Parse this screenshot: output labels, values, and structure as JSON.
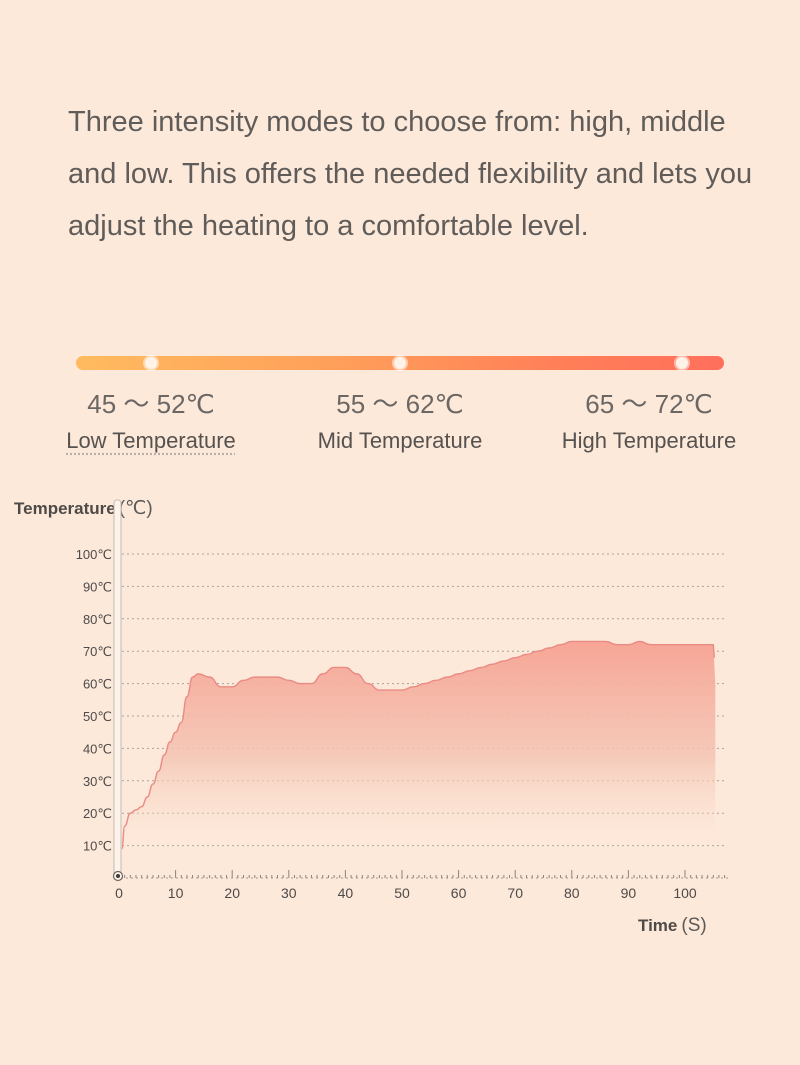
{
  "intro": "Three intensity modes to choose from: high, middle and low. This offers the needed flexibility and lets you adjust the heating to a comfortable level.",
  "modes": [
    {
      "range": "45 ～ 52℃",
      "name": "Low Temperature"
    },
    {
      "range": "55 ～ 62℃",
      "name": "Mid Temperature"
    },
    {
      "range": "65 ～ 72℃",
      "name": "High Temperature"
    }
  ],
  "colors": {
    "background": "#fde9da",
    "bar_start": "#ffbb5f",
    "bar_end": "#ff6f5c",
    "curve_line": "#e98b84",
    "area_top": "#f7a89a"
  },
  "chart_data": {
    "type": "area",
    "ylabel": "Temperature",
    "ylabel_unit": "(℃)",
    "xlabel": "Time",
    "xlabel_unit": "(S)",
    "x_ticks": [
      0,
      10,
      20,
      30,
      40,
      50,
      60,
      70,
      80,
      90,
      100
    ],
    "x_tick_labels": [
      "0",
      "10",
      "20",
      "30",
      "40",
      "50",
      "60",
      "70",
      "80",
      "90",
      "100"
    ],
    "y_ticks": [
      10,
      20,
      30,
      40,
      50,
      60,
      70,
      80,
      90,
      100
    ],
    "y_tick_labels": [
      "10℃",
      "20℃",
      "30℃",
      "40℃",
      "50℃",
      "60℃",
      "70℃",
      "80℃",
      "90℃",
      "100℃"
    ],
    "xlim": [
      0,
      107
    ],
    "ylim": [
      0,
      100
    ],
    "grid": "horizontal-dotted",
    "series": [
      {
        "x": [
          0.5,
          1,
          2,
          3,
          4,
          5,
          6,
          7,
          8,
          9,
          10,
          11,
          12,
          13,
          14,
          16,
          18,
          20,
          22,
          24,
          26,
          28,
          30,
          32,
          34,
          36,
          38,
          40,
          42,
          44,
          46,
          48,
          50,
          52,
          54,
          56,
          58,
          60,
          62,
          64,
          66,
          68,
          70,
          72,
          74,
          76,
          78,
          80,
          82,
          84,
          86,
          88,
          90,
          92,
          94,
          96,
          98,
          100,
          102,
          104,
          105
        ],
        "y": [
          9,
          16,
          20,
          21,
          22,
          25,
          29,
          33,
          38,
          42,
          45,
          48,
          56,
          62,
          63,
          62,
          59,
          59,
          61,
          62,
          62,
          62,
          61,
          60,
          60,
          63,
          65,
          65,
          63,
          60,
          58,
          58,
          58,
          59,
          60,
          61,
          62,
          63,
          64,
          65,
          66,
          67,
          68,
          69,
          70,
          71,
          72,
          73,
          73,
          73,
          73,
          72,
          72,
          73,
          72,
          72,
          72,
          72,
          72,
          72,
          72
        ]
      }
    ]
  }
}
